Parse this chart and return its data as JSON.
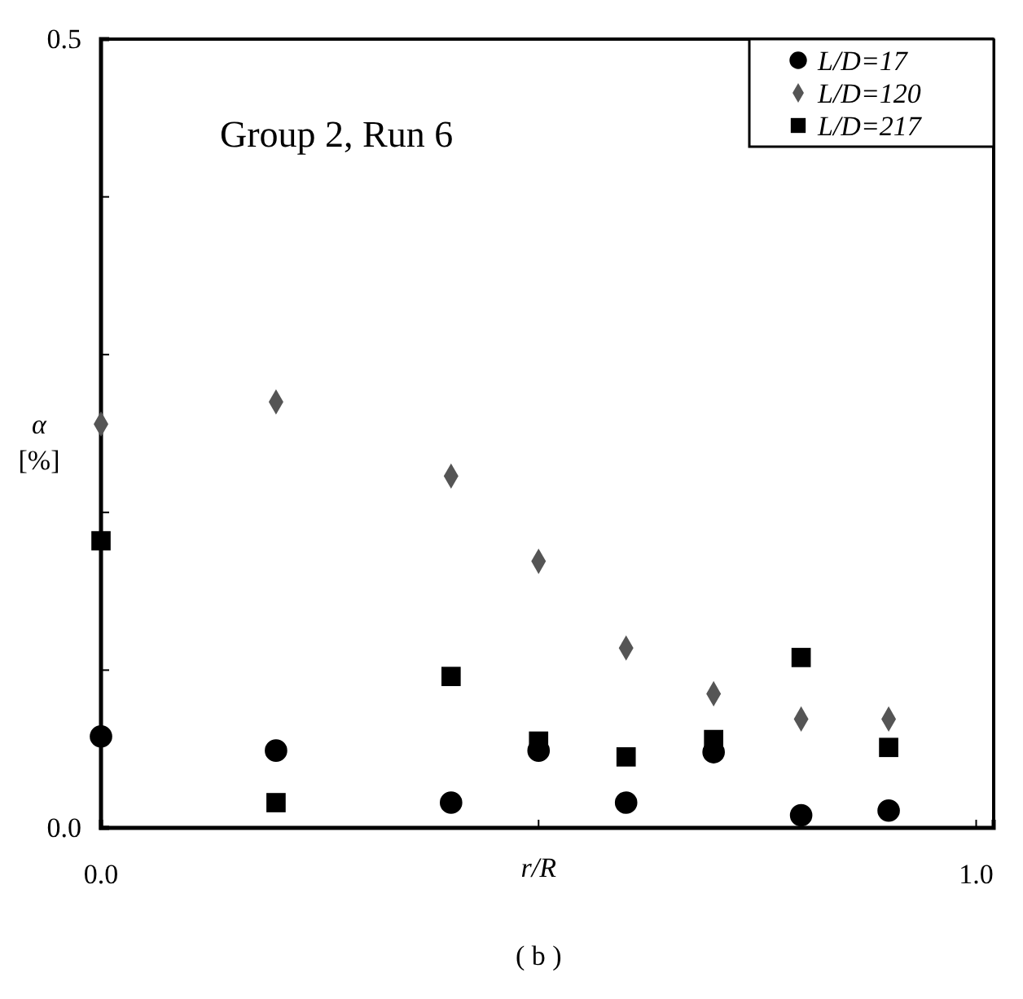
{
  "chart_data": {
    "type": "scatter",
    "xlabel": "r/R",
    "ylabel": "α [%]",
    "annotations": [
      "Group 2, Run 6",
      "( b )"
    ],
    "xlim": [
      0,
      1.02
    ],
    "ylim": [
      0,
      0.5
    ],
    "xticks": [
      {
        "value": 0,
        "label": "0.0"
      },
      {
        "value": 0.5,
        "label": null
      },
      {
        "value": 1,
        "label": "1.0"
      }
    ],
    "yticks": [
      {
        "value": 0,
        "label": "0.0"
      },
      {
        "value": 0.1,
        "label": null
      },
      {
        "value": 0.2,
        "label": null
      },
      {
        "value": 0.3,
        "label": null
      },
      {
        "value": 0.4,
        "label": null
      },
      {
        "value": 0.5,
        "label": "0.5"
      }
    ],
    "x": [
      0,
      0.2,
      0.4,
      0.5,
      0.6,
      0.7,
      0.8,
      0.9
    ],
    "legend": "top right",
    "series": [
      {
        "name": "L/D=17",
        "color": "#000000",
        "marker": "circle",
        "values": [
          0.058,
          0.049,
          0.016,
          0.049,
          0.016,
          0.048,
          0.008,
          0.011
        ]
      },
      {
        "name": "L/D=120",
        "color": "#555555",
        "marker": "diamond",
        "values": [
          0.256,
          0.27,
          0.223,
          0.169,
          0.114,
          0.085,
          0.069,
          0.069
        ]
      },
      {
        "name": "L/D=217",
        "color": "#000000",
        "marker": "square",
        "values": [
          0.182,
          0.016,
          0.096,
          0.055,
          0.045,
          0.056,
          0.108,
          0.051
        ]
      }
    ]
  }
}
